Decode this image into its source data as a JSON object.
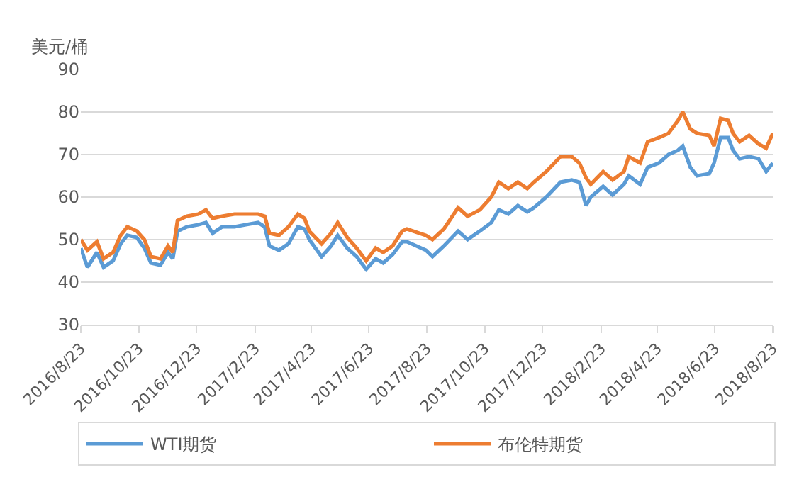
{
  "chart_data": {
    "type": "line",
    "ylabel": "美元/桶",
    "x": [
      "2016-08-23",
      "2016-08-30",
      "2016-09-09",
      "2016-09-16",
      "2016-09-26",
      "2016-10-04",
      "2016-10-11",
      "2016-10-21",
      "2016-10-29",
      "2016-11-05",
      "2016-11-15",
      "2016-11-23",
      "2016-11-28",
      "2016-12-03",
      "2016-12-13",
      "2016-12-25",
      "2017-01-02",
      "2017-01-09",
      "2017-01-19",
      "2017-02-01",
      "2017-02-13",
      "2017-02-26",
      "2017-03-05",
      "2017-03-10",
      "2017-03-20",
      "2017-03-30",
      "2017-04-09",
      "2017-04-16",
      "2017-04-21",
      "2017-05-04",
      "2017-05-14",
      "2017-05-21",
      "2017-05-31",
      "2017-06-10",
      "2017-06-20",
      "2017-06-30",
      "2017-07-08",
      "2017-07-18",
      "2017-07-28",
      "2017-08-02",
      "2017-08-22",
      "2017-08-29",
      "2017-09-10",
      "2017-09-25",
      "2017-10-05",
      "2017-10-18",
      "2017-10-30",
      "2017-11-07",
      "2017-11-17",
      "2017-11-27",
      "2017-12-07",
      "2017-12-14",
      "2017-12-27",
      "2018-01-11",
      "2018-01-23",
      "2018-01-31",
      "2018-02-07",
      "2018-02-12",
      "2018-02-25",
      "2018-03-07",
      "2018-03-19",
      "2018-03-24",
      "2018-04-05",
      "2018-04-13",
      "2018-04-25",
      "2018-05-05",
      "2018-05-15",
      "2018-05-20",
      "2018-05-28",
      "2018-06-04",
      "2018-06-17",
      "2018-06-22",
      "2018-06-29",
      "2018-07-07",
      "2018-07-12",
      "2018-07-19",
      "2018-07-29",
      "2018-08-08",
      "2018-08-16",
      "2018-08-23"
    ],
    "series": [
      {
        "name": "WTI期货",
        "color": "#5b9bd5",
        "values": [
          48,
          43.5,
          47,
          43.5,
          45,
          49,
          51,
          50.5,
          48,
          44.5,
          44,
          47,
          45.5,
          52,
          53,
          53.5,
          54,
          51.5,
          53,
          53,
          53.5,
          54,
          53,
          48.5,
          47.5,
          49,
          53,
          52.5,
          50,
          46,
          48.5,
          51,
          48,
          46,
          43,
          45.5,
          44.5,
          46.5,
          49.5,
          49.5,
          47.5,
          46,
          48.5,
          52,
          50,
          52,
          54,
          57,
          56,
          58,
          56.5,
          57.5,
          60,
          63.5,
          64,
          63.5,
          58,
          60,
          62.5,
          60.5,
          63,
          65,
          63,
          67,
          68,
          70,
          71,
          72,
          67,
          65,
          65.5,
          68,
          74,
          74,
          71,
          69,
          69.5,
          69,
          66,
          68
        ]
      },
      {
        "name": "布伦特期货",
        "color": "#ed7d31",
        "values": [
          50,
          47.5,
          49.5,
          45.5,
          47,
          51,
          53,
          52,
          50,
          46,
          45.5,
          48.5,
          47,
          54.5,
          55.5,
          56,
          57,
          55,
          55.5,
          56,
          56,
          56,
          55.5,
          51.5,
          51,
          53,
          56,
          55,
          52,
          49,
          51.5,
          54,
          50.5,
          48,
          45,
          48,
          47,
          48.5,
          52,
          52.5,
          51,
          50,
          52.5,
          57.5,
          55.5,
          57,
          60,
          63.5,
          62,
          63.5,
          62,
          63.5,
          66,
          69.5,
          69.5,
          68,
          64.5,
          63,
          66,
          64,
          66,
          69.5,
          68,
          73,
          74,
          75,
          78,
          80,
          76,
          75,
          74.5,
          72,
          78.5,
          78,
          75,
          73,
          74.5,
          72.5,
          71.5,
          75
        ]
      }
    ],
    "xlim": [
      "2016-08-23",
      "2018-08-23"
    ],
    "xticks": [
      {
        "value": "2016-08-23",
        "label": "2016/8/23"
      },
      {
        "value": "2016-10-23",
        "label": "2016/10/23"
      },
      {
        "value": "2016-12-23",
        "label": "2016/12/23"
      },
      {
        "value": "2017-02-23",
        "label": "2017/2/23"
      },
      {
        "value": "2017-04-23",
        "label": "2017/4/23"
      },
      {
        "value": "2017-06-23",
        "label": "2017/6/23"
      },
      {
        "value": "2017-08-23",
        "label": "2017/8/23"
      },
      {
        "value": "2017-10-23",
        "label": "2017/10/23"
      },
      {
        "value": "2017-12-23",
        "label": "2017/12/23"
      },
      {
        "value": "2018-02-23",
        "label": "2018/2/23"
      },
      {
        "value": "2018-04-23",
        "label": "2018/4/23"
      },
      {
        "value": "2018-06-23",
        "label": "2018/6/23"
      },
      {
        "value": "2018-08-23",
        "label": "2018/8/23"
      }
    ],
    "ylim": [
      30,
      90
    ],
    "yticks": [
      30,
      40,
      50,
      60,
      70,
      80,
      90
    ],
    "grid": "y",
    "legend": "bottom",
    "marker": "none",
    "line_style": "solid"
  }
}
